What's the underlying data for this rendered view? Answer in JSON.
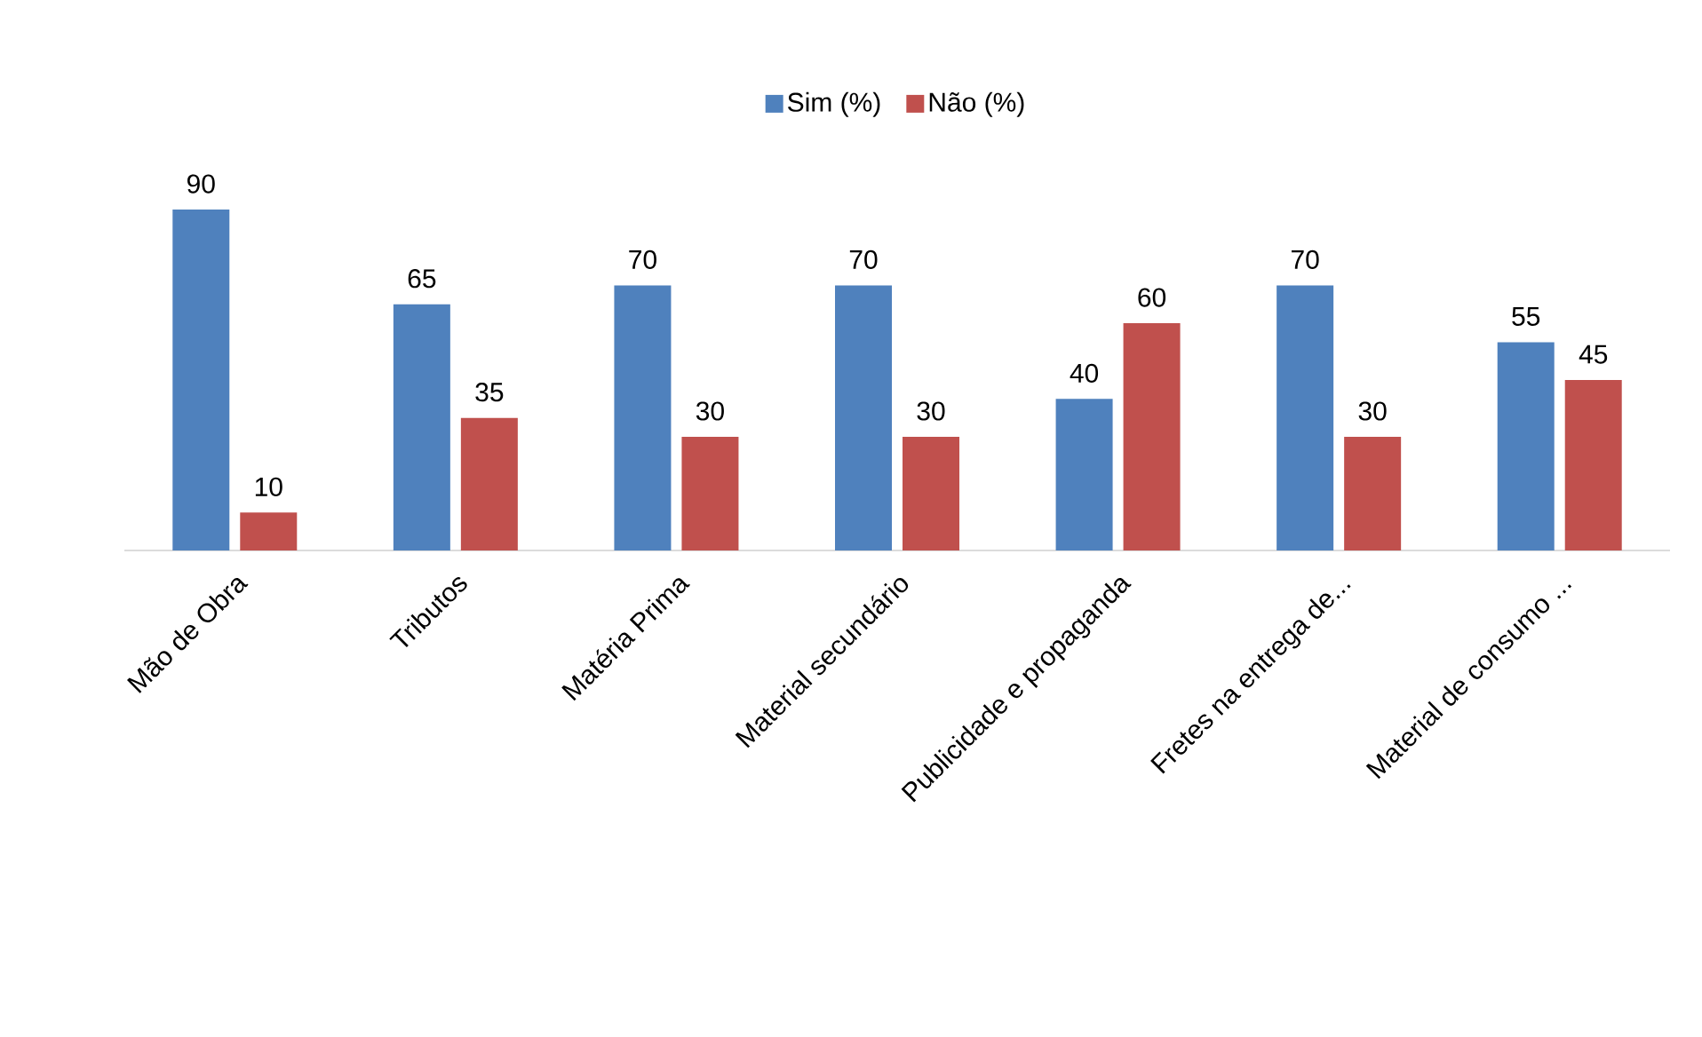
{
  "chart_data": {
    "type": "bar",
    "categories": [
      "Mão de Obra",
      "Tributos",
      "Matéria Prima",
      "Material secundário",
      "Publicidade e propaganda",
      "Fretes na entrega de...",
      "Material de consumo ..."
    ],
    "series": [
      {
        "name": "Sim (%)",
        "color": "#4f81bd",
        "values": [
          90,
          65,
          70,
          70,
          40,
          70,
          55
        ]
      },
      {
        "name": "Não (%)",
        "color": "#c0504d",
        "values": [
          10,
          35,
          30,
          30,
          60,
          30,
          45
        ]
      }
    ],
    "data_labels": true,
    "legend": "top"
  }
}
